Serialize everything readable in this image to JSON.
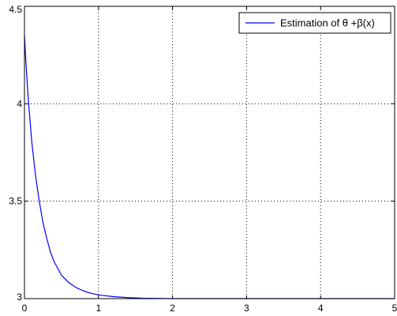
{
  "chart_data": {
    "type": "line",
    "title": "",
    "xlabel": "",
    "ylabel": "",
    "xlim": [
      0,
      5
    ],
    "ylim": [
      3,
      4.5
    ],
    "grid": true,
    "legend_position": "top-right",
    "x_ticks": [
      "0",
      "1",
      "2",
      "3",
      "4",
      "5"
    ],
    "y_ticks": [
      "3",
      "3.5",
      "4",
      "4.5"
    ],
    "series": [
      {
        "name": "Estimation of θ +β(x)",
        "color": "#0000ff",
        "x": [
          0.0,
          0.02,
          0.05,
          0.1,
          0.15,
          0.2,
          0.25,
          0.3,
          0.35,
          0.4,
          0.5,
          0.6,
          0.7,
          0.8,
          0.9,
          1.0,
          1.2,
          1.4,
          1.6,
          1.8,
          2.0,
          2.5,
          3.0,
          3.5,
          4.0,
          4.5,
          5.0
        ],
        "y": [
          4.35,
          4.21,
          4.03,
          3.8,
          3.63,
          3.5,
          3.39,
          3.31,
          3.24,
          3.19,
          3.12,
          3.082,
          3.056,
          3.039,
          3.027,
          3.019,
          3.01,
          3.005,
          3.002,
          3.001,
          3.0,
          3.0,
          3.0,
          3.0,
          3.0,
          3.0,
          3.0
        ]
      }
    ]
  }
}
